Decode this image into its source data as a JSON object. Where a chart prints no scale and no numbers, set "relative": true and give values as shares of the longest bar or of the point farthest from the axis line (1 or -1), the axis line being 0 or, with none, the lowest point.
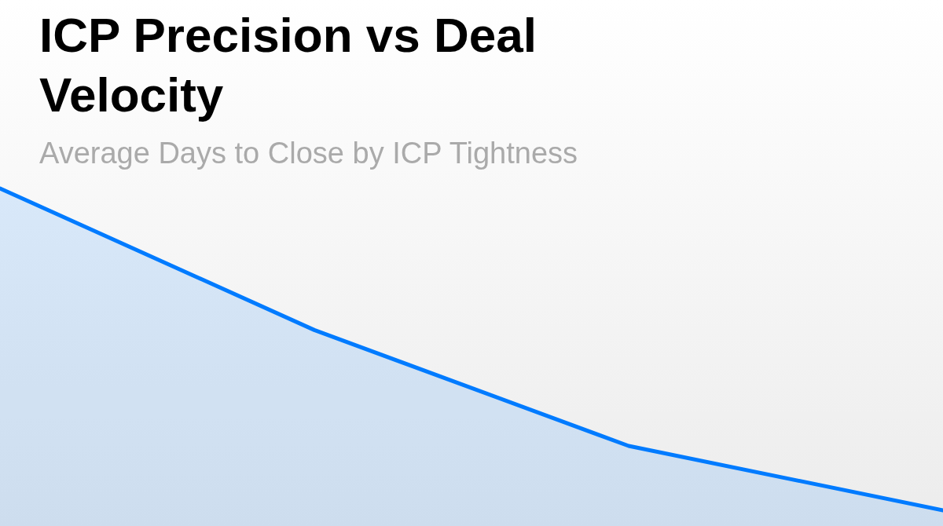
{
  "chart_data": {
    "type": "area",
    "title": "ICP Precision vs Deal Velocity",
    "subtitle": "Average Days to Close by ICP Tightness",
    "relative": true,
    "categories": [
      null,
      null,
      null,
      null
    ],
    "series": [
      {
        "color": "#007bff",
        "values": [
          1,
          0.56,
          0.2,
          0
        ]
      }
    ]
  }
}
